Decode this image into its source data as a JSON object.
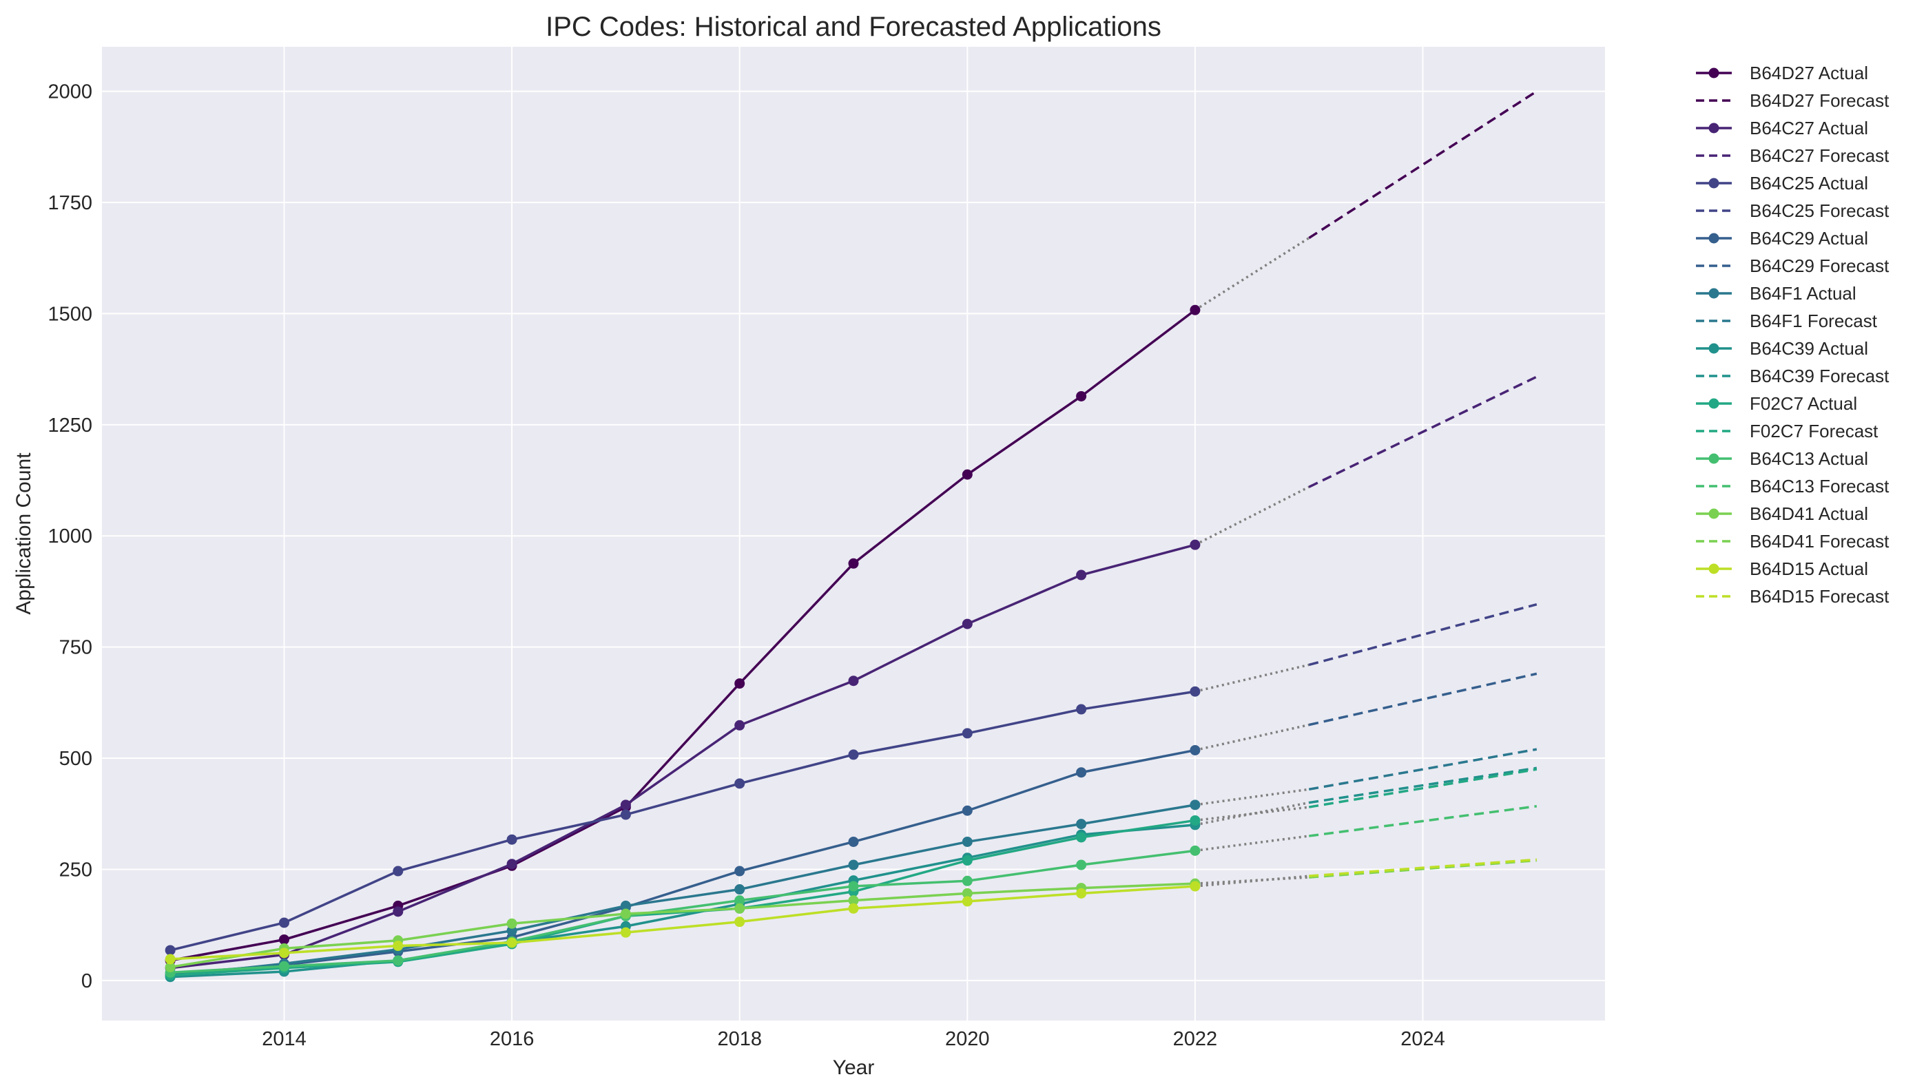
{
  "chart_data": {
    "type": "line",
    "title": "IPC Codes: Historical and Forecasted Applications",
    "xlabel": "Year",
    "ylabel": "Application Count",
    "xlim": [
      2012.4,
      2025.6
    ],
    "ylim": [
      -90,
      2100
    ],
    "xticks": [
      2014,
      2016,
      2018,
      2020,
      2022,
      2024
    ],
    "yticks": [
      0,
      250,
      500,
      750,
      1000,
      1250,
      1500,
      1750,
      2000
    ],
    "grid": true,
    "legend_position": "outside-right",
    "background_color": "#eaeaf2",
    "connector_color": "#808080",
    "years": [
      2013,
      2014,
      2015,
      2016,
      2017,
      2018,
      2019,
      2020,
      2021,
      2022
    ],
    "forecast_years": [
      2023,
      2025
    ],
    "series": [
      {
        "name": "B64D27",
        "actual_label": "B64D27 Actual",
        "forecast_label": "B64D27 Forecast",
        "color": "#440154",
        "values": [
          45,
          92,
          168,
          258,
          390,
          668,
          938,
          1138,
          1314,
          1508
        ],
        "forecast": [
          1670,
          2000
        ]
      },
      {
        "name": "B64C27",
        "actual_label": "B64C27 Actual",
        "forecast_label": "B64C27 Forecast",
        "color": "#482475",
        "values": [
          28,
          58,
          155,
          262,
          395,
          574,
          674,
          802,
          912,
          980
        ],
        "forecast": [
          1110,
          1358
        ]
      },
      {
        "name": "B64C25",
        "actual_label": "B64C25 Actual",
        "forecast_label": "B64C25 Forecast",
        "color": "#414487",
        "values": [
          68,
          130,
          246,
          317,
          373,
          443,
          508,
          556,
          610,
          650
        ],
        "forecast": [
          710,
          846
        ]
      },
      {
        "name": "B64C29",
        "actual_label": "B64C29 Actual",
        "forecast_label": "B64C29 Forecast",
        "color": "#355f8d",
        "values": [
          15,
          35,
          65,
          97,
          165,
          246,
          312,
          382,
          468,
          518
        ],
        "forecast": [
          575,
          690
        ]
      },
      {
        "name": "B64F1",
        "actual_label": "B64F1 Actual",
        "forecast_label": "B64F1 Forecast",
        "color": "#2a788e",
        "values": [
          10,
          38,
          70,
          112,
          168,
          205,
          260,
          312,
          352,
          395
        ],
        "forecast": [
          430,
          520
        ]
      },
      {
        "name": "B64C39",
        "actual_label": "B64C39 Actual",
        "forecast_label": "B64C39 Forecast",
        "color": "#21918c",
        "values": [
          8,
          20,
          45,
          85,
          122,
          172,
          225,
          276,
          328,
          350
        ],
        "forecast": [
          400,
          478
        ]
      },
      {
        "name": "F02C7",
        "actual_label": "F02C7 Actual",
        "forecast_label": "F02C7 Forecast",
        "color": "#22a884",
        "values": [
          12,
          28,
          42,
          82,
          145,
          162,
          200,
          270,
          322,
          360
        ],
        "forecast": [
          390,
          475
        ]
      },
      {
        "name": "B64C13",
        "actual_label": "B64C13 Actual",
        "forecast_label": "B64C13 Forecast",
        "color": "#44bf70",
        "values": [
          18,
          32,
          45,
          88,
          145,
          180,
          212,
          224,
          260,
          292
        ],
        "forecast": [
          325,
          392
        ]
      },
      {
        "name": "B64D41",
        "actual_label": "B64D41 Actual",
        "forecast_label": "B64D41 Forecast",
        "color": "#7ad151",
        "values": [
          30,
          72,
          90,
          128,
          150,
          162,
          180,
          196,
          208,
          218
        ],
        "forecast": [
          232,
          270
        ]
      },
      {
        "name": "B64D15",
        "actual_label": "B64D15 Actual",
        "forecast_label": "B64D15 Forecast",
        "color": "#bddf26",
        "values": [
          48,
          62,
          78,
          85,
          108,
          132,
          162,
          178,
          196,
          212
        ],
        "forecast": [
          235,
          272
        ]
      },
      {
        "name": "",
        "actual_label": "",
        "forecast_label": "",
        "color": "#fde725",
        "values": [],
        "forecast": []
      }
    ]
  }
}
